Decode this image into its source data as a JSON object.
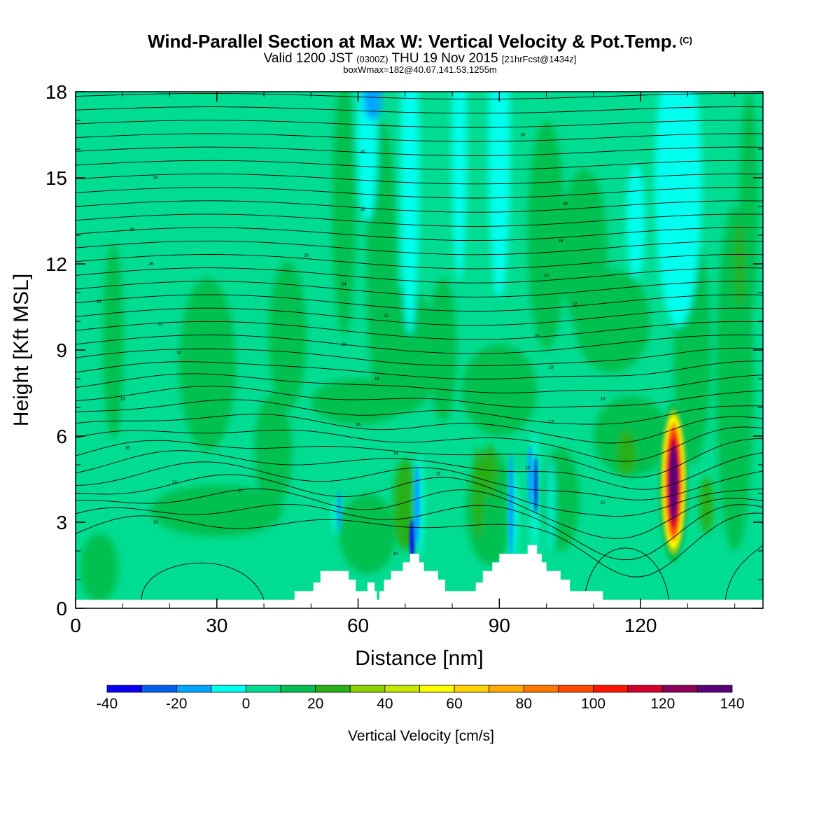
{
  "title": {
    "main": "Wind-Parallel Section at Max W: Vertical Velocity & Pot.Temp.",
    "copyright": "(C)",
    "valid_prefix": "Valid 1200 JST",
    "valid_utc": "(0300Z)",
    "valid_date": "THU 19 Nov 2015",
    "forecast": "[21hrFcst@1434z]",
    "box_info": "boxWmax=182@40.67,141.53,1255m"
  },
  "chart_data": {
    "type": "heatmap",
    "xlabel": "Distance [nm]",
    "ylabel": "Height [Kft MSL]",
    "xlim": [
      0,
      146
    ],
    "ylim": [
      0,
      18
    ],
    "x_ticks": [
      "0",
      "30",
      "60",
      "90",
      "120"
    ],
    "y_ticks": [
      "0",
      "3",
      "6",
      "9",
      "12",
      "15",
      "18"
    ],
    "colorbar": {
      "label": "Vertical Velocity [cm/s]",
      "tick_labels": [
        "-40",
        "-20",
        "0",
        "20",
        "40",
        "60",
        "80",
        "100",
        "120",
        "140"
      ],
      "bounds": [
        -40,
        -30,
        -20,
        -10,
        0,
        10,
        20,
        30,
        40,
        50,
        60,
        70,
        80,
        90,
        100,
        110,
        120,
        130,
        140
      ],
      "colors": [
        "#0a00f0",
        "#0560f0",
        "#00a5ff",
        "#00ffee",
        "#00dc91",
        "#00c050",
        "#28b014",
        "#8cd200",
        "#c8e600",
        "#ffff00",
        "#ffd200",
        "#ffaa00",
        "#ff7800",
        "#ff4b00",
        "#ff1400",
        "#d2002d",
        "#8c005a",
        "#5a0078"
      ]
    },
    "background_value": 5,
    "terrain": [
      [
        0,
        0.3
      ],
      [
        46.5,
        0.3
      ],
      [
        46.5,
        0.6
      ],
      [
        50.5,
        0.6
      ],
      [
        50.5,
        0.9
      ],
      [
        52,
        0.9
      ],
      [
        52,
        1.3
      ],
      [
        58,
        1.3
      ],
      [
        58,
        1.0
      ],
      [
        59.5,
        1.0
      ],
      [
        59.5,
        0.6
      ],
      [
        62,
        0.6
      ],
      [
        62,
        0.9
      ],
      [
        63.5,
        0.9
      ],
      [
        63.5,
        0.6
      ],
      [
        64,
        0.6
      ],
      [
        64,
        0.3
      ],
      [
        64.5,
        0.3
      ],
      [
        64.5,
        0.6
      ],
      [
        65.5,
        0.6
      ],
      [
        65.5,
        1.0
      ],
      [
        67,
        1.0
      ],
      [
        67,
        1.3
      ],
      [
        69.5,
        1.3
      ],
      [
        69.5,
        1.6
      ],
      [
        71,
        1.6
      ],
      [
        71,
        1.9
      ],
      [
        73,
        1.9
      ],
      [
        73,
        1.6
      ],
      [
        74,
        1.6
      ],
      [
        74,
        1.3
      ],
      [
        77,
        1.3
      ],
      [
        77,
        1.0
      ],
      [
        78.5,
        1.0
      ],
      [
        78.5,
        0.6
      ],
      [
        85,
        0.6
      ],
      [
        85,
        0.9
      ],
      [
        86.5,
        0.9
      ],
      [
        86.5,
        1.3
      ],
      [
        88.5,
        1.3
      ],
      [
        88.5,
        1.6
      ],
      [
        90,
        1.6
      ],
      [
        90,
        1.9
      ],
      [
        96,
        1.9
      ],
      [
        96,
        2.2
      ],
      [
        98,
        2.2
      ],
      [
        98,
        1.9
      ],
      [
        99,
        1.9
      ],
      [
        99,
        1.6
      ],
      [
        100,
        1.6
      ],
      [
        100,
        1.3
      ],
      [
        103,
        1.3
      ],
      [
        103,
        1.0
      ],
      [
        105,
        1.0
      ],
      [
        105,
        0.6
      ],
      [
        112,
        0.6
      ],
      [
        112,
        0.3
      ],
      [
        146,
        0.3
      ]
    ],
    "theta_contour_labels": [
      {
        "x": 17,
        "y": 15.0,
        "text": "30"
      },
      {
        "x": 12,
        "y": 13.2,
        "text": "28"
      },
      {
        "x": 16,
        "y": 12.0,
        "text": "26"
      },
      {
        "x": 5,
        "y": 10.7,
        "text": "24"
      },
      {
        "x": 18,
        "y": 9.9,
        "text": "22"
      },
      {
        "x": 22,
        "y": 8.9,
        "text": "20"
      },
      {
        "x": 10,
        "y": 7.3,
        "text": "18"
      },
      {
        "x": 11,
        "y": 5.6,
        "text": "16"
      },
      {
        "x": 21,
        "y": 4.4,
        "text": "14"
      },
      {
        "x": 35,
        "y": 4.1,
        "text": "12"
      },
      {
        "x": 17,
        "y": 3.0,
        "text": "10"
      },
      {
        "x": 61,
        "y": 15.9,
        "text": "30"
      },
      {
        "x": 61,
        "y": 13.9,
        "text": "28"
      },
      {
        "x": 49,
        "y": 12.3,
        "text": "26"
      },
      {
        "x": 57,
        "y": 11.3,
        "text": "24"
      },
      {
        "x": 66,
        "y": 10.2,
        "text": "22"
      },
      {
        "x": 57,
        "y": 9.2,
        "text": "20"
      },
      {
        "x": 64,
        "y": 8.0,
        "text": "18"
      },
      {
        "x": 60,
        "y": 6.4,
        "text": "16"
      },
      {
        "x": 68,
        "y": 5.4,
        "text": "14"
      },
      {
        "x": 77,
        "y": 4.7,
        "text": "13"
      },
      {
        "x": 68,
        "y": 1.9,
        "text": "10"
      },
      {
        "x": 95,
        "y": 16.5,
        "text": "30"
      },
      {
        "x": 104,
        "y": 14.1,
        "text": "28"
      },
      {
        "x": 103,
        "y": 12.8,
        "text": "26"
      },
      {
        "x": 100,
        "y": 11.6,
        "text": "24"
      },
      {
        "x": 106,
        "y": 10.6,
        "text": "22"
      },
      {
        "x": 98,
        "y": 9.5,
        "text": "20"
      },
      {
        "x": 101,
        "y": 8.4,
        "text": "18"
      },
      {
        "x": 112,
        "y": 7.3,
        "text": "16"
      },
      {
        "x": 101,
        "y": 6.5,
        "text": "17"
      },
      {
        "x": 96,
        "y": 4.9,
        "text": "12"
      },
      {
        "x": 112,
        "y": 3.7,
        "text": "10"
      }
    ]
  }
}
